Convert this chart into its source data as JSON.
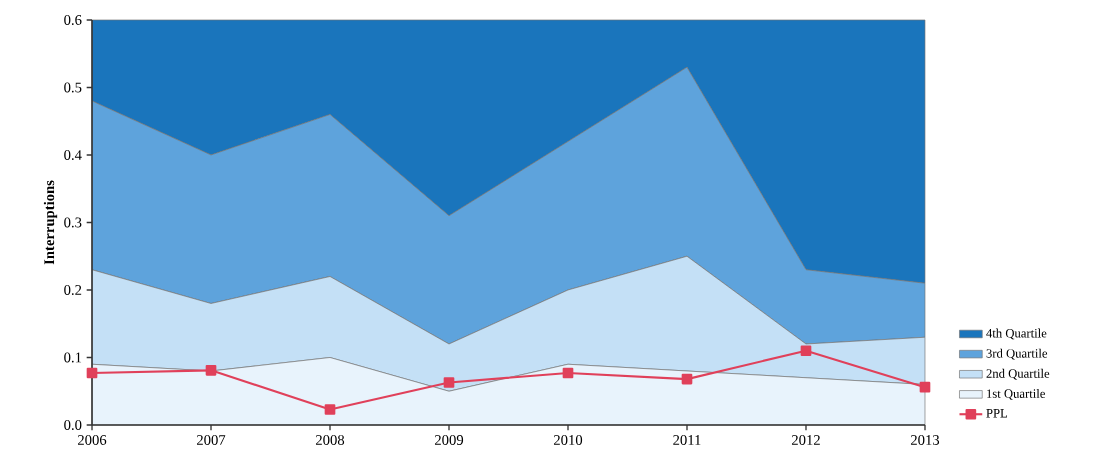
{
  "chart_data": {
    "type": "area",
    "stacked": true,
    "ylabel": "Interruptions",
    "categories": [
      "2006",
      "2007",
      "2008",
      "2009",
      "2010",
      "2011",
      "2012",
      "2013"
    ],
    "series": [
      {
        "name": "1st Quartile",
        "color": "#e8f3fc",
        "values": [
          0.09,
          0.08,
          0.1,
          0.05,
          0.09,
          0.08,
          0.07,
          0.06
        ]
      },
      {
        "name": "2nd Quartile",
        "color": "#c4e0f6",
        "values": [
          0.14,
          0.1,
          0.12,
          0.07,
          0.11,
          0.17,
          0.05,
          0.07
        ]
      },
      {
        "name": "3rd Quartile",
        "color": "#5ea3dc",
        "values": [
          0.25,
          0.22,
          0.24,
          0.19,
          0.22,
          0.28,
          0.11,
          0.08
        ]
      },
      {
        "name": "4th Quartile",
        "color": "#1a75bc",
        "values": [
          0.12,
          0.2,
          0.14,
          0.29,
          0.18,
          0.07,
          0.37,
          0.39
        ]
      },
      {
        "name": "PPL",
        "type": "line",
        "marker": "square",
        "color": "#e0405a",
        "values": [
          0.077,
          0.081,
          0.023,
          0.063,
          0.077,
          0.068,
          0.11,
          0.056
        ]
      }
    ],
    "ylim": [
      0,
      0.6
    ],
    "yticks": [
      {
        "value": 0,
        "label": "0.0"
      },
      0.1,
      0.2,
      0.3,
      0.4,
      0.5,
      0.6
    ],
    "legend": "right"
  }
}
